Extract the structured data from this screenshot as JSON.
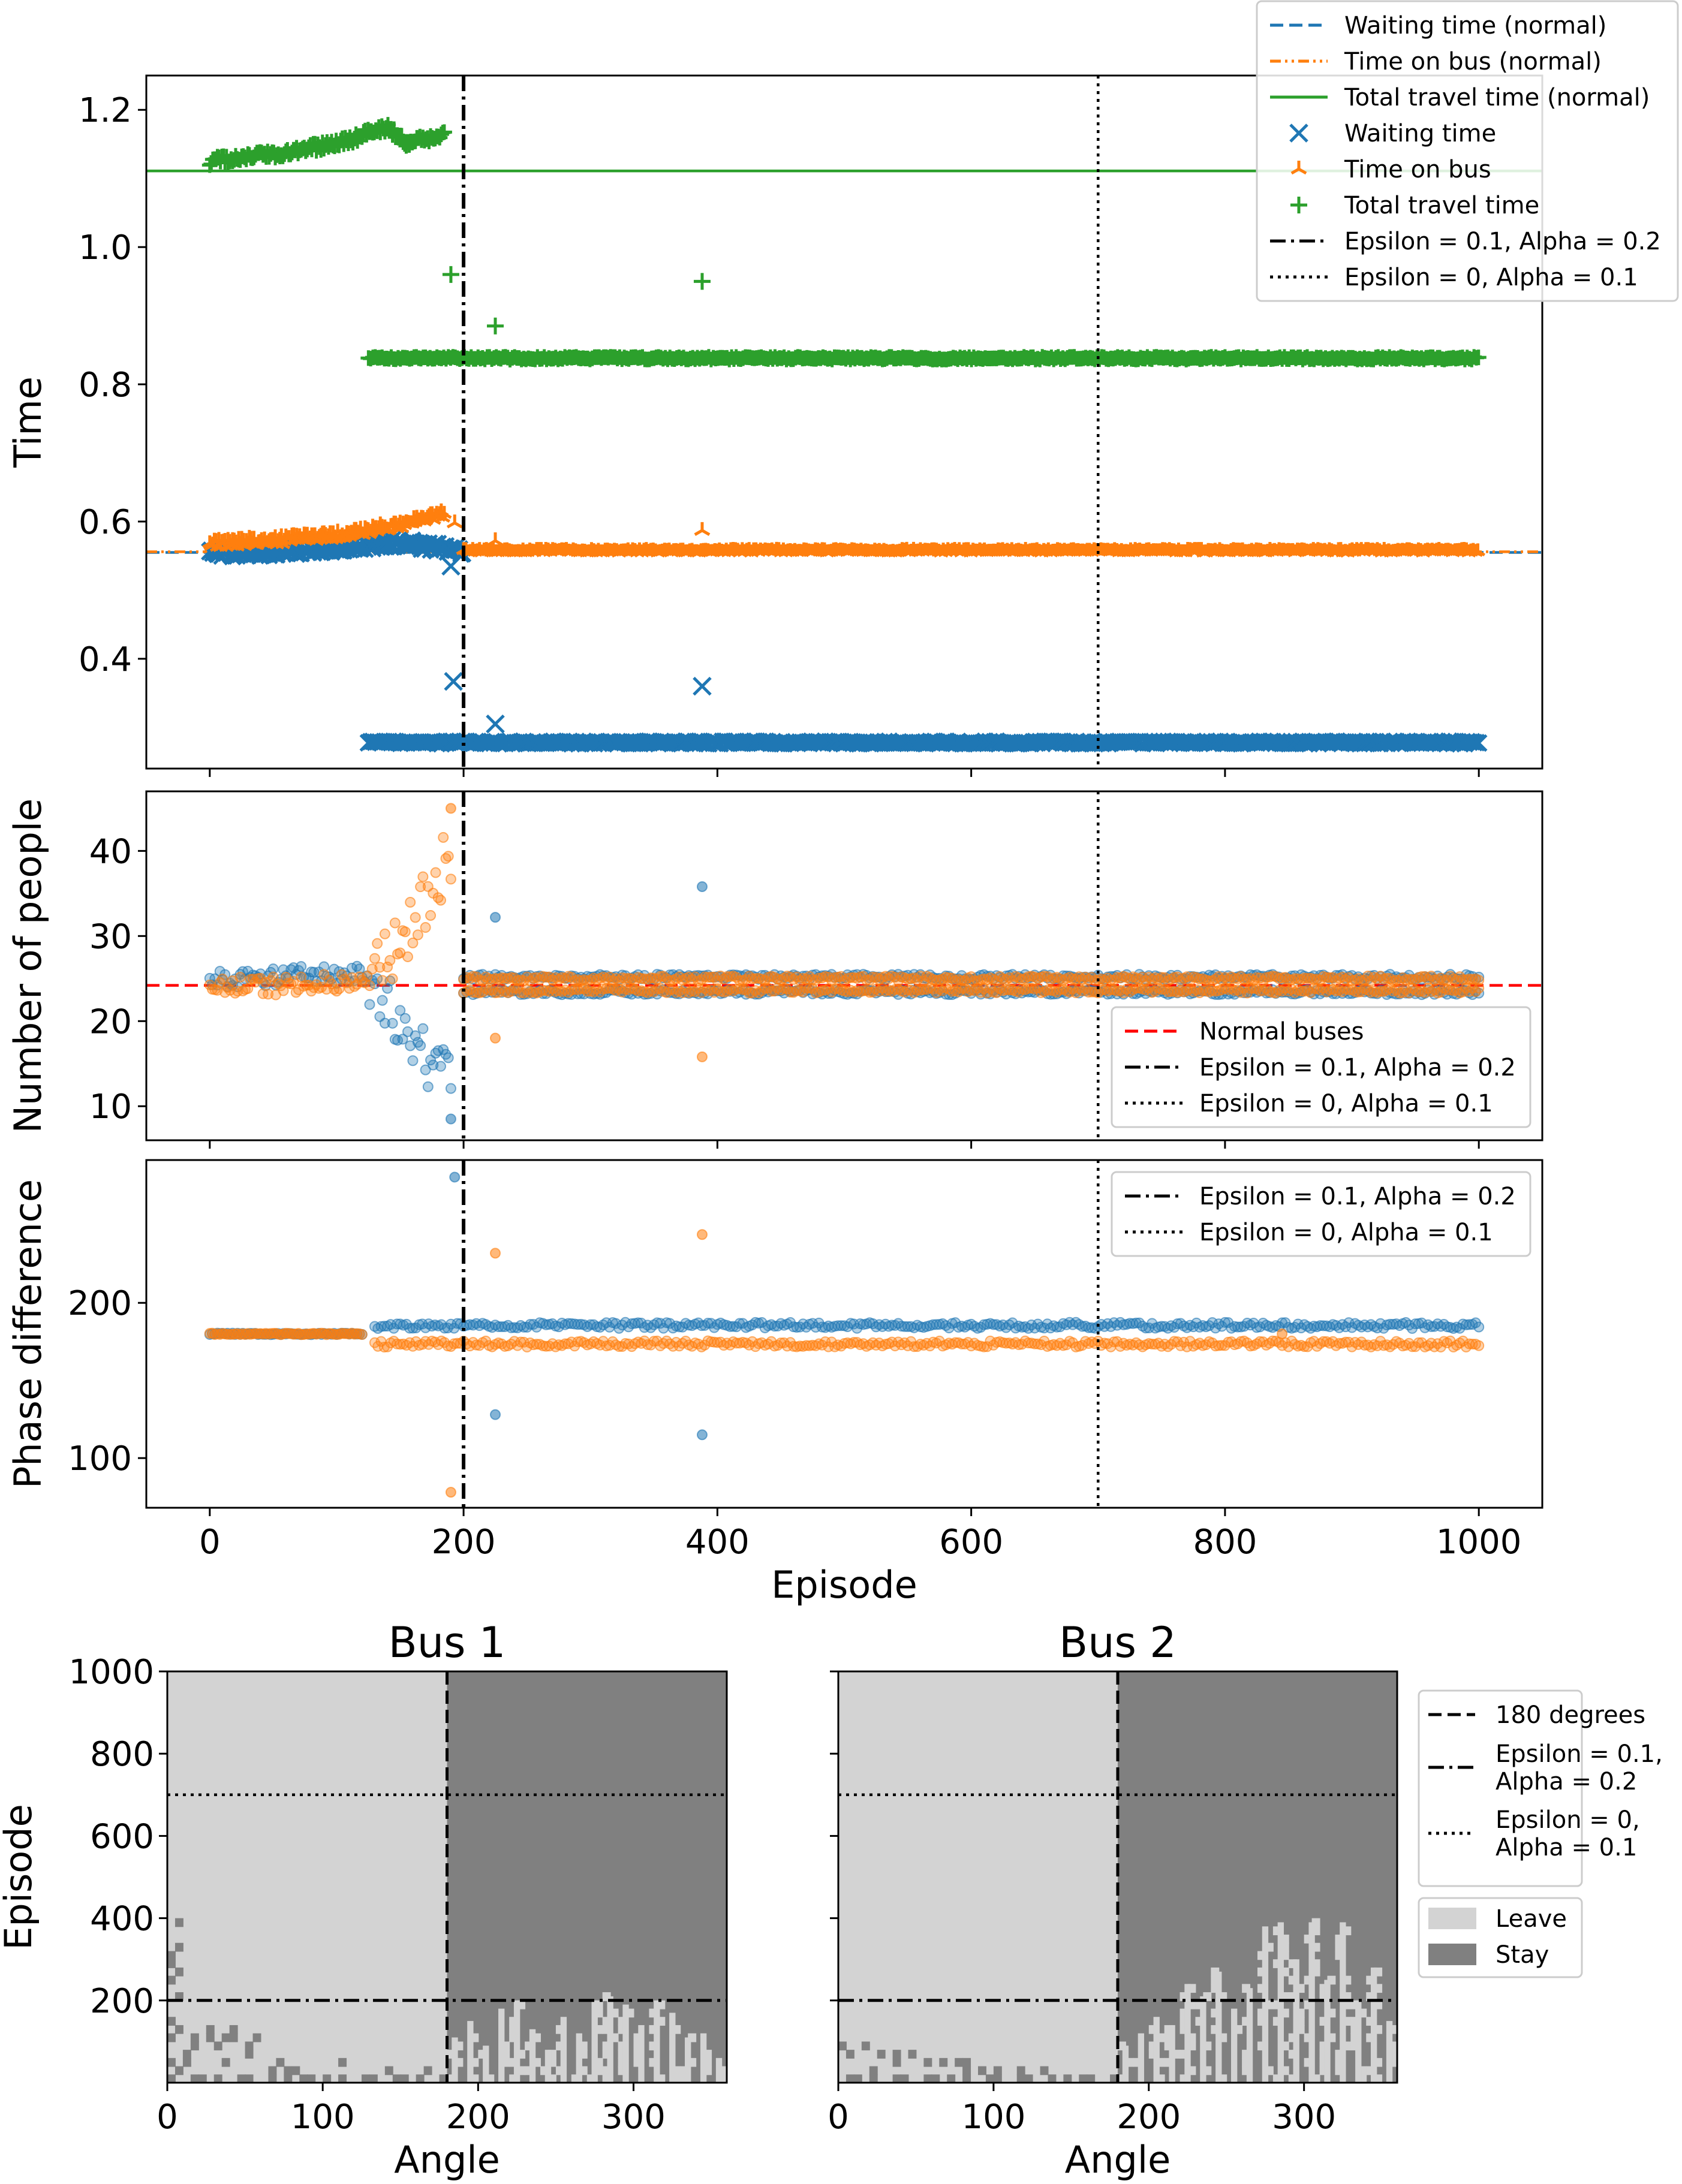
{
  "colors": {
    "blue": "#1f77b4",
    "orange": "#ff7f0e",
    "green": "#2ca02c",
    "red": "#ff0000",
    "leave": "#d3d3d3",
    "stay": "#808080"
  },
  "chart_data": [
    {
      "id": "time",
      "type": "scatter",
      "ylabel": "Time",
      "xlim": [
        -50,
        1050
      ],
      "ylim": [
        0.24,
        1.25
      ],
      "yticks": [
        0.4,
        0.6,
        0.8,
        1.0,
        1.2
      ],
      "ytick_labels": [
        "0.4",
        "0.6",
        "0.8",
        "1.0",
        "1.2"
      ],
      "series": [
        {
          "name": "Waiting time (normal)",
          "kind": "hline",
          "style": "dashed",
          "color": "blue",
          "y": 0.555
        },
        {
          "name": "Time on bus (normal)",
          "kind": "hline",
          "style": "dashdotdot",
          "color": "orange",
          "y": 0.556
        },
        {
          "name": "Total travel time (normal)",
          "kind": "hline",
          "style": "solid",
          "color": "green",
          "y": 1.111
        },
        {
          "name": "Waiting time",
          "kind": "points",
          "marker": "x",
          "color": "blue",
          "trend": [
            [
              0,
              0.553
            ],
            [
              50,
              0.556
            ],
            [
              100,
              0.562
            ],
            [
              150,
              0.57
            ],
            [
              180,
              0.562
            ],
            [
              200,
              0.556
            ]
          ],
          "band": [
            [
              125,
              1000,
              0.278
            ]
          ],
          "outliers": [
            [
              190,
              0.535
            ],
            [
              192,
              0.367
            ],
            [
              225,
              0.305
            ],
            [
              388,
              0.36
            ]
          ]
        },
        {
          "name": "Time on bus",
          "kind": "points",
          "marker": "tri",
          "color": "orange",
          "trend": [
            [
              0,
              0.568
            ],
            [
              50,
              0.572
            ],
            [
              100,
              0.58
            ],
            [
              150,
              0.595
            ],
            [
              185,
              0.612
            ]
          ],
          "band": [
            [
              200,
              1000,
              0.557
            ]
          ],
          "outliers": [
            [
              193,
              0.598
            ],
            [
              225,
              0.572
            ],
            [
              388,
              0.587
            ]
          ]
        },
        {
          "name": "Total travel time",
          "kind": "points",
          "marker": "plus",
          "color": "green",
          "trend": [
            [
              0,
              1.125
            ],
            [
              50,
              1.135
            ],
            [
              100,
              1.15
            ],
            [
              140,
              1.175
            ],
            [
              155,
              1.15
            ],
            [
              185,
              1.165
            ]
          ],
          "band": [
            [
              125,
              1000,
              0.838
            ]
          ],
          "outliers": [
            [
              190,
              0.96
            ],
            [
              225,
              0.885
            ],
            [
              388,
              0.95
            ]
          ]
        },
        {
          "name": "Epsilon = 0.1, Alpha = 0.2",
          "kind": "vline",
          "style": "dashdot",
          "color": "black",
          "x": 200
        },
        {
          "name": "Epsilon = 0, Alpha = 0.1",
          "kind": "vline",
          "style": "dotted",
          "color": "black",
          "x": 700
        }
      ],
      "legend": {
        "location": "top-right",
        "entries": [
          {
            "label": "Waiting time (normal)",
            "icon": "line-dashed",
            "color": "blue"
          },
          {
            "label": "Time on bus (normal)",
            "icon": "line-dashdotdot",
            "color": "orange"
          },
          {
            "label": "Total travel time (normal)",
            "icon": "line-solid",
            "color": "green"
          },
          {
            "label": "Waiting time",
            "icon": "marker-x",
            "color": "blue"
          },
          {
            "label": "Time on bus",
            "icon": "marker-tri",
            "color": "orange"
          },
          {
            "label": "Total travel time",
            "icon": "marker-plus",
            "color": "green"
          },
          {
            "label": "Epsilon = 0.1, Alpha = 0.2",
            "icon": "line-dashdot",
            "color": "black"
          },
          {
            "label": "Epsilon = 0, Alpha = 0.1",
            "icon": "line-dotted",
            "color": "black"
          }
        ]
      }
    },
    {
      "id": "people",
      "type": "scatter",
      "ylabel": "Number of people",
      "xlim": [
        -50,
        1050
      ],
      "ylim": [
        6,
        47
      ],
      "yticks": [
        10,
        20,
        30,
        40
      ],
      "ytick_labels": [
        "10",
        "20",
        "30",
        "40"
      ],
      "series": [
        {
          "name": "Normal buses",
          "kind": "hline",
          "style": "dashed",
          "color": "red",
          "y": 24.2
        },
        {
          "name": "Bus 1",
          "color": "blue",
          "trend": [
            [
              0,
              25
            ],
            [
              60,
              25.3
            ],
            [
              120,
              25.6
            ],
            [
              130,
              24.5
            ],
            [
              150,
              20
            ],
            [
              170,
              16
            ],
            [
              190,
              12
            ]
          ],
          "bands": [
            [
              200,
              1000,
              23.4
            ],
            [
              200,
              1000,
              25.2
            ]
          ],
          "outliers": [
            [
              190,
              8.5
            ],
            [
              225,
              32.2
            ],
            [
              388,
              35.8
            ]
          ]
        },
        {
          "name": "Bus 2",
          "color": "orange",
          "trend": [
            [
              0,
              24
            ],
            [
              60,
              24.2
            ],
            [
              120,
              24.8
            ],
            [
              130,
              25.5
            ],
            [
              150,
              29
            ],
            [
              170,
              34
            ],
            [
              190,
              40
            ]
          ],
          "bands": [
            [
              200,
              1000,
              25.0
            ],
            [
              200,
              1000,
              23.6
            ]
          ],
          "outliers": [
            [
              190,
              45
            ],
            [
              225,
              18
            ],
            [
              388,
              15.8
            ]
          ]
        },
        {
          "name": "Epsilon = 0.1, Alpha = 0.2",
          "kind": "vline",
          "style": "dashdot",
          "color": "black",
          "x": 200
        },
        {
          "name": "Epsilon = 0, Alpha = 0.1",
          "kind": "vline",
          "style": "dotted",
          "color": "black",
          "x": 700
        }
      ],
      "legend": {
        "location": "lower-right",
        "entries": [
          {
            "label": "Normal buses",
            "icon": "line-dashed",
            "color": "red"
          },
          {
            "label": "Epsilon = 0.1, Alpha = 0.2",
            "icon": "line-dashdot",
            "color": "black"
          },
          {
            "label": "Epsilon = 0, Alpha = 0.1",
            "icon": "line-dotted",
            "color": "black"
          }
        ]
      }
    },
    {
      "id": "phase",
      "type": "scatter",
      "ylabel": "Phase difference",
      "xlabel": "Episode",
      "xlim": [
        -50,
        1050
      ],
      "ylim": [
        68,
        292
      ],
      "yticks": [
        100,
        200
      ],
      "ytick_labels": [
        "100",
        "200"
      ],
      "xticks": [
        0,
        200,
        400,
        600,
        800,
        1000
      ],
      "xtick_labels": [
        "0",
        "200",
        "400",
        "600",
        "800",
        "1000"
      ],
      "series": [
        {
          "name": "Bus 1",
          "color": "blue",
          "trend": [
            [
              0,
              180
            ],
            [
              120,
              180
            ]
          ],
          "bands": [
            [
              130,
              1000,
              185.5
            ]
          ],
          "outliers": [
            [
              193,
              281
            ],
            [
              225,
              128
            ],
            [
              388,
              115
            ]
          ]
        },
        {
          "name": "Bus 2",
          "color": "orange",
          "trend": [
            [
              0,
              180
            ],
            [
              120,
              180
            ]
          ],
          "bands": [
            [
              130,
              1000,
              173.5
            ]
          ],
          "outliers": [
            [
              190,
              78
            ],
            [
              225,
              232
            ],
            [
              388,
              244
            ],
            [
              845,
              180
            ]
          ]
        },
        {
          "name": "Epsilon = 0.1, Alpha = 0.2",
          "kind": "vline",
          "style": "dashdot",
          "color": "black",
          "x": 200
        },
        {
          "name": "Epsilon = 0, Alpha = 0.1",
          "kind": "vline",
          "style": "dotted",
          "color": "black",
          "x": 700
        }
      ],
      "legend": {
        "location": "top-right",
        "entries": [
          {
            "label": "Epsilon = 0.1, Alpha = 0.2",
            "icon": "line-dashdot",
            "color": "black"
          },
          {
            "label": "Epsilon = 0, Alpha = 0.1",
            "icon": "line-dotted",
            "color": "black"
          }
        ]
      }
    },
    {
      "id": "bus1",
      "type": "heatmap",
      "title": "Bus 1",
      "xlabel": "Angle",
      "ylabel": "Episode",
      "xlim": [
        0,
        360
      ],
      "ylim": [
        0,
        1000
      ],
      "xticks": [
        0,
        100,
        200,
        300
      ],
      "xtick_labels": [
        "0",
        "100",
        "200",
        "300"
      ],
      "yticks": [
        200,
        400,
        600,
        800,
        1000
      ],
      "ytick_labels": [
        "200",
        "400",
        "600",
        "800",
        "1000"
      ],
      "policy": "Leave for angle < 180, Stay for angle >= 180 after convergence; mixed before episode ~200",
      "stay_tops_left": [
        [
          0,
          390
        ],
        [
          10,
          130
        ],
        [
          20,
          160
        ],
        [
          30,
          150
        ],
        [
          40,
          140
        ],
        [
          50,
          120
        ],
        [
          60,
          100
        ],
        [
          70,
          90
        ],
        [
          80,
          80
        ],
        [
          90,
          70
        ],
        [
          100,
          60
        ],
        [
          110,
          60
        ],
        [
          120,
          50
        ],
        [
          130,
          50
        ],
        [
          140,
          40
        ],
        [
          150,
          40
        ],
        [
          160,
          30
        ],
        [
          170,
          30
        ]
      ],
      "leave_tops_right": [
        [
          185,
          110
        ],
        [
          195,
          150
        ],
        [
          205,
          90
        ],
        [
          215,
          180
        ],
        [
          225,
          200
        ],
        [
          235,
          130
        ],
        [
          245,
          80
        ],
        [
          255,
          160
        ],
        [
          265,
          120
        ],
        [
          275,
          200
        ],
        [
          285,
          210
        ],
        [
          295,
          190
        ],
        [
          305,
          140
        ],
        [
          315,
          200
        ],
        [
          325,
          170
        ],
        [
          335,
          110
        ],
        [
          345,
          120
        ],
        [
          355,
          60
        ]
      ],
      "hlines": [
        {
          "label": "Epsilon = 0.1, Alpha = 0.2",
          "style": "dashdot",
          "y": 200
        },
        {
          "label": "Epsilon = 0, Alpha = 0.1",
          "style": "dotted",
          "y": 700
        }
      ],
      "vline": {
        "label": "180 degrees",
        "style": "dashed",
        "x": 180
      }
    },
    {
      "id": "bus2",
      "type": "heatmap",
      "title": "Bus 2",
      "xlabel": "Angle",
      "xlim": [
        0,
        360
      ],
      "ylim": [
        0,
        1000
      ],
      "xticks": [
        0,
        100,
        200,
        300
      ],
      "xtick_labels": [
        "0",
        "100",
        "200",
        "300"
      ],
      "policy": "Leave for angle < 180, Stay for angle >= 180 after convergence; mixed before episode ~200",
      "stay_tops_left": [
        [
          0,
          100
        ],
        [
          10,
          90
        ],
        [
          20,
          80
        ],
        [
          30,
          70
        ],
        [
          40,
          70
        ],
        [
          50,
          60
        ],
        [
          60,
          60
        ],
        [
          70,
          50
        ],
        [
          80,
          50
        ],
        [
          90,
          40
        ],
        [
          100,
          40
        ],
        [
          110,
          40
        ],
        [
          120,
          30
        ],
        [
          130,
          30
        ],
        [
          140,
          30
        ],
        [
          150,
          20
        ],
        [
          160,
          20
        ],
        [
          170,
          20
        ]
      ],
      "leave_tops_right": [
        [
          185,
          90
        ],
        [
          195,
          120
        ],
        [
          205,
          160
        ],
        [
          215,
          140
        ],
        [
          225,
          240
        ],
        [
          235,
          210
        ],
        [
          245,
          270
        ],
        [
          255,
          180
        ],
        [
          265,
          230
        ],
        [
          275,
          380
        ],
        [
          285,
          390
        ],
        [
          295,
          300
        ],
        [
          305,
          390
        ],
        [
          315,
          250
        ],
        [
          325,
          390
        ],
        [
          335,
          200
        ],
        [
          345,
          280
        ],
        [
          355,
          150
        ]
      ],
      "hlines": [
        {
          "label": "Epsilon = 0.1, Alpha = 0.2",
          "style": "dashdot",
          "y": 200
        },
        {
          "label": "Epsilon = 0, Alpha = 0.1",
          "style": "dotted",
          "y": 700
        }
      ],
      "vline": {
        "label": "180 degrees",
        "style": "dashed",
        "x": 180
      },
      "legend": {
        "location": "right",
        "line_entries": [
          {
            "lines": [
              "180 degrees"
            ],
            "icon": "line-dashed"
          },
          {
            "lines": [
              "Epsilon = 0.1,",
              "Alpha = 0.2"
            ],
            "icon": "line-dashdot"
          },
          {
            "lines": [
              "Epsilon = 0,",
              "Alpha = 0.1"
            ],
            "icon": "line-dotted"
          }
        ],
        "patch_entries": [
          {
            "label": "Leave",
            "color": "leave"
          },
          {
            "label": "Stay",
            "color": "stay"
          }
        ]
      }
    }
  ]
}
